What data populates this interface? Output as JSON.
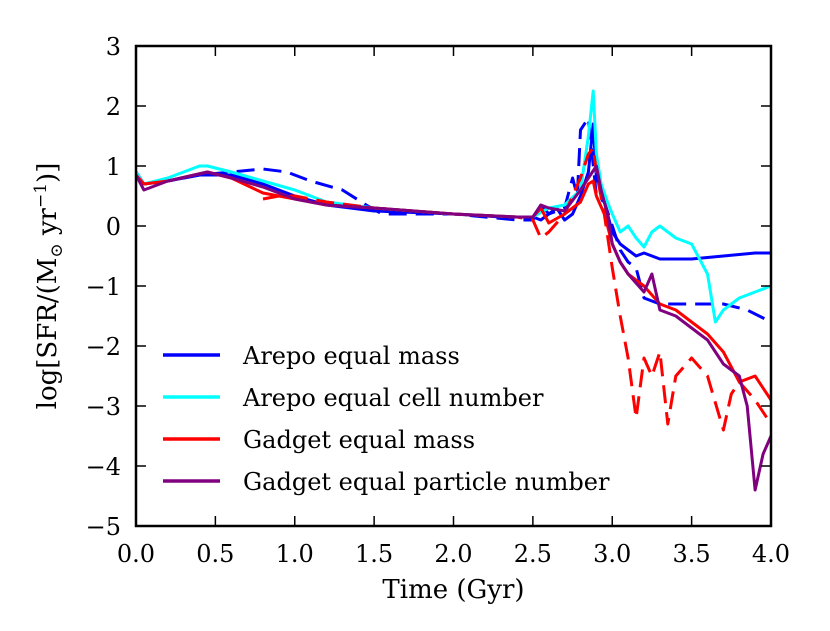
{
  "chart_data": {
    "type": "line",
    "title": "",
    "xlabel": "Time (Gyr)",
    "ylabel_prefix": "log[SFR/(M",
    "ylabel_sub": "⊙",
    "ylabel_mid": " yr",
    "ylabel_sup": "−1",
    "ylabel_suffix": ")]",
    "xlim": [
      0.0,
      4.0
    ],
    "ylim": [
      -5,
      3
    ],
    "xticks": [
      0.0,
      0.5,
      1.0,
      1.5,
      2.0,
      2.5,
      3.0,
      3.5,
      4.0
    ],
    "xtick_labels": [
      "0.0",
      "0.5",
      "1.0",
      "1.5",
      "2.0",
      "2.5",
      "3.0",
      "3.5",
      "4.0"
    ],
    "yticks": [
      -5,
      -4,
      -3,
      -2,
      -1,
      0,
      1,
      2,
      3
    ],
    "ytick_labels": [
      "−5",
      "−4",
      "−3",
      "−2",
      "−1",
      "0",
      "1",
      "2",
      "3"
    ],
    "grid": false,
    "legend_position": "lower-left",
    "legend": [
      {
        "label": "Arepo equal mass",
        "color": "#0000ff"
      },
      {
        "label": "Arepo equal cell number",
        "color": "#00ffff"
      },
      {
        "label": "Gadget equal mass",
        "color": "#ff0000"
      },
      {
        "label": "Gadget equal particle number",
        "color": "#800080"
      }
    ],
    "series": [
      {
        "name": "Arepo equal mass",
        "style": "solid",
        "color": "#0000ff",
        "x": [
          0.0,
          0.05,
          0.2,
          0.4,
          0.6,
          0.8,
          1.0,
          1.2,
          1.5,
          2.0,
          2.3,
          2.5,
          2.55,
          2.6,
          2.65,
          2.7,
          2.75,
          2.8,
          2.85,
          2.88,
          2.9,
          2.93,
          2.97,
          3.0,
          3.05,
          3.1,
          3.15,
          3.2,
          3.3,
          3.5,
          3.7,
          3.9,
          4.0
        ],
        "y": [
          0.9,
          0.7,
          0.75,
          0.85,
          0.85,
          0.7,
          0.5,
          0.35,
          0.25,
          0.2,
          0.15,
          0.15,
          0.1,
          0.2,
          0.3,
          0.1,
          0.2,
          0.5,
          0.9,
          1.7,
          0.8,
          0.6,
          0.2,
          -0.1,
          -0.3,
          -0.4,
          -0.5,
          -0.45,
          -0.55,
          -0.55,
          -0.5,
          -0.45,
          -0.45
        ]
      },
      {
        "name": "Arepo equal mass (dashed)",
        "style": "dashed",
        "color": "#0000ff",
        "x": [
          0.0,
          0.05,
          0.2,
          0.4,
          0.6,
          0.8,
          0.95,
          1.1,
          1.3,
          1.45,
          1.55,
          2.0,
          2.4,
          2.5,
          2.55,
          2.6,
          2.7,
          2.75,
          2.78,
          2.8,
          2.85,
          2.9,
          2.95,
          3.0,
          3.05,
          3.1,
          3.15,
          3.2,
          3.3,
          3.5,
          3.7,
          3.85,
          4.0
        ],
        "y": [
          0.9,
          0.7,
          0.75,
          0.85,
          0.9,
          0.95,
          0.9,
          0.75,
          0.6,
          0.35,
          0.2,
          0.2,
          0.1,
          0.1,
          0.35,
          0.2,
          0.3,
          0.8,
          0.5,
          1.6,
          1.8,
          0.5,
          0.4,
          0.0,
          -0.4,
          -0.6,
          -0.7,
          -1.2,
          -1.3,
          -1.3,
          -1.3,
          -1.4,
          -1.6
        ]
      },
      {
        "name": "Arepo equal cell number",
        "style": "solid",
        "color": "#00ffff",
        "x": [
          0.0,
          0.05,
          0.2,
          0.4,
          0.45,
          0.6,
          0.8,
          1.0,
          1.2,
          1.5,
          2.0,
          2.4,
          2.5,
          2.6,
          2.7,
          2.8,
          2.85,
          2.88,
          2.9,
          2.93,
          2.97,
          3.0,
          3.05,
          3.1,
          3.15,
          3.2,
          3.25,
          3.3,
          3.4,
          3.5,
          3.6,
          3.65,
          3.7,
          3.8,
          3.9,
          4.0
        ],
        "y": [
          0.9,
          0.7,
          0.8,
          1.0,
          1.0,
          0.9,
          0.75,
          0.6,
          0.4,
          0.3,
          0.2,
          0.15,
          0.15,
          0.3,
          0.35,
          0.6,
          1.5,
          2.25,
          1.2,
          0.7,
          0.4,
          0.2,
          -0.1,
          0.0,
          -0.2,
          -0.35,
          -0.1,
          0.0,
          -0.2,
          -0.3,
          -0.8,
          -1.6,
          -1.4,
          -1.2,
          -1.1,
          -1.0
        ]
      },
      {
        "name": "Gadget equal mass",
        "style": "solid",
        "color": "#ff0000",
        "x": [
          0.0,
          0.05,
          0.2,
          0.45,
          0.6,
          0.8,
          1.0,
          1.2,
          1.5,
          2.0,
          2.4,
          2.5,
          2.55,
          2.6,
          2.7,
          2.8,
          2.85,
          2.88,
          2.9,
          2.95,
          3.0,
          3.05,
          3.1,
          3.2,
          3.3,
          3.4,
          3.5,
          3.6,
          3.7,
          3.8,
          3.9,
          4.0
        ],
        "y": [
          0.85,
          0.7,
          0.75,
          0.9,
          0.8,
          0.55,
          0.45,
          0.35,
          0.3,
          0.2,
          0.15,
          0.15,
          0.3,
          0.05,
          0.2,
          0.4,
          0.7,
          0.75,
          0.5,
          0.2,
          -0.3,
          -0.6,
          -0.8,
          -1.0,
          -1.3,
          -1.4,
          -1.6,
          -1.8,
          -2.1,
          -2.6,
          -2.5,
          -2.9
        ]
      },
      {
        "name": "Gadget equal mass (dashed)",
        "style": "dashed",
        "color": "#ff0000",
        "x": [
          0.8,
          0.9,
          1.0,
          1.2,
          1.5,
          2.0,
          2.4,
          2.5,
          2.55,
          2.6,
          2.7,
          2.8,
          2.85,
          2.88,
          2.9,
          2.95,
          3.0,
          3.05,
          3.1,
          3.15,
          3.2,
          3.25,
          3.3,
          3.35,
          3.4,
          3.5,
          3.6,
          3.7,
          3.75,
          3.8,
          3.9,
          4.0
        ],
        "y": [
          0.45,
          0.5,
          0.5,
          0.4,
          0.3,
          0.2,
          0.15,
          0.1,
          -0.2,
          -0.1,
          0.2,
          0.8,
          1.2,
          1.3,
          0.9,
          0.2,
          -0.7,
          -1.5,
          -2.2,
          -3.2,
          -2.2,
          -2.5,
          -2.1,
          -3.3,
          -2.5,
          -2.2,
          -2.5,
          -3.4,
          -2.8,
          -2.6,
          -2.9,
          -3.3
        ]
      },
      {
        "name": "Gadget equal particle number",
        "style": "solid",
        "color": "#800080",
        "x": [
          0.0,
          0.05,
          0.2,
          0.45,
          0.6,
          0.8,
          1.0,
          1.2,
          1.5,
          2.0,
          2.4,
          2.5,
          2.55,
          2.6,
          2.7,
          2.8,
          2.85,
          2.9,
          2.93,
          2.97,
          3.0,
          3.05,
          3.1,
          3.2,
          3.25,
          3.3,
          3.4,
          3.5,
          3.6,
          3.7,
          3.8,
          3.85,
          3.9,
          3.95,
          4.0
        ],
        "y": [
          0.85,
          0.6,
          0.75,
          0.9,
          0.8,
          0.65,
          0.45,
          0.35,
          0.3,
          0.2,
          0.15,
          0.15,
          0.35,
          0.3,
          0.25,
          0.6,
          0.8,
          1.0,
          0.6,
          0.2,
          -0.3,
          -0.6,
          -0.8,
          -1.1,
          -0.8,
          -1.4,
          -1.5,
          -1.7,
          -1.9,
          -2.3,
          -2.5,
          -3.0,
          -4.4,
          -3.8,
          -3.5
        ]
      }
    ]
  }
}
